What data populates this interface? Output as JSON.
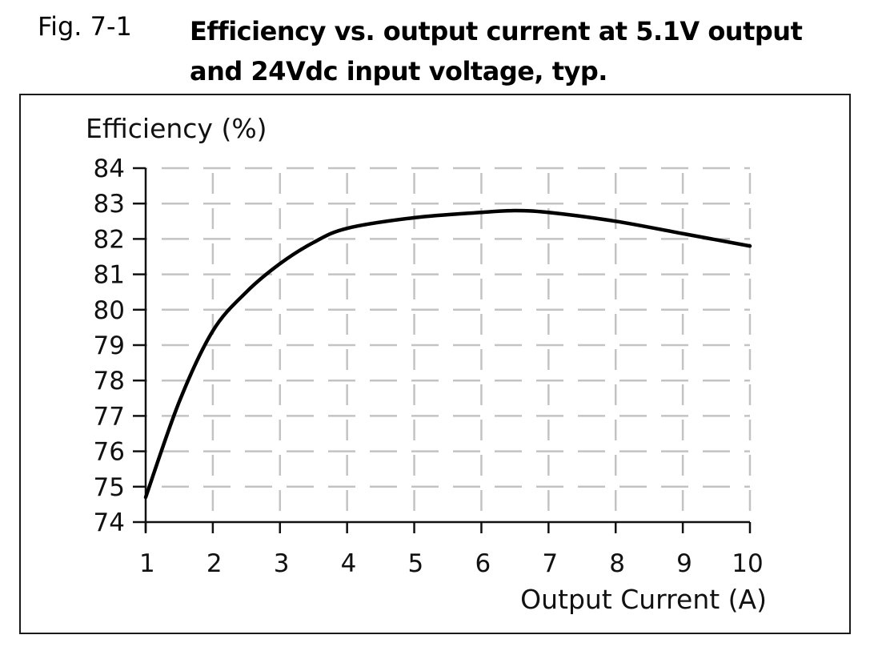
{
  "figure": {
    "label": "Fig. 7-1",
    "title_line1": "Efficiency vs. output current at 5.1V output",
    "title_line2": "and 24Vdc input voltage, typ."
  },
  "chart_data": {
    "type": "line",
    "title": "Efficiency vs. output current at 5.1V output and 24Vdc input voltage, typ.",
    "xlabel": "Output Current (A)",
    "ylabel": "Efficiency (%)",
    "xlim": [
      1,
      10
    ],
    "ylim": [
      74,
      84
    ],
    "x_ticks": [
      1,
      2,
      3,
      4,
      5,
      6,
      7,
      8,
      9,
      10
    ],
    "y_ticks": [
      74,
      75,
      76,
      77,
      78,
      79,
      80,
      81,
      82,
      83,
      84
    ],
    "grid": "dashed",
    "legend": null,
    "series": [
      {
        "name": "Efficiency",
        "x": [
          1,
          1.5,
          2,
          2.5,
          3,
          3.5,
          4,
          5,
          6,
          6.5,
          7,
          8,
          9,
          10
        ],
        "values": [
          74.7,
          77.4,
          79.4,
          80.5,
          81.3,
          81.9,
          82.3,
          82.6,
          82.75,
          82.8,
          82.75,
          82.5,
          82.15,
          81.8
        ]
      }
    ],
    "notes": "Values read visually from the plotted curve against the axis grid; the chart has no data labels. Start point and overall shape are reliable; intermediate points are estimates accurate to roughly +/-0.2%."
  }
}
